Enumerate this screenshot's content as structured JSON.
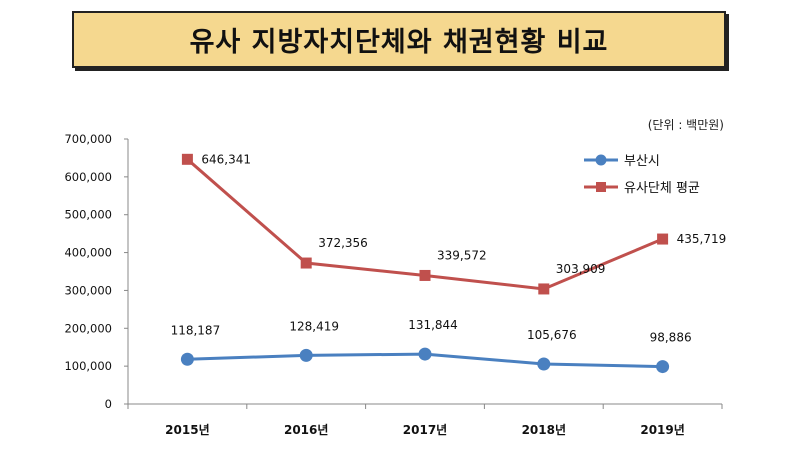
{
  "title": "유사 지방자치단체와 채권현황 비교",
  "unit": "(단위 : 백만원)",
  "chart_data": {
    "type": "line",
    "x": [
      "2015년",
      "2016년",
      "2017년",
      "2018년",
      "2019년"
    ],
    "ylim": [
      0,
      700000
    ],
    "yticks": [
      0,
      100000,
      200000,
      300000,
      400000,
      500000,
      600000,
      700000
    ],
    "ytick_labels": [
      "0",
      "100,000",
      "200,000",
      "300,000",
      "400,000",
      "500,000",
      "600,000",
      "700,000"
    ],
    "grid": false,
    "legend_position": "top-right",
    "series": [
      {
        "name": "부산시",
        "color": "#4a80c0",
        "marker": "circle",
        "values": [
          118187,
          128419,
          131844,
          105676,
          98886
        ],
        "labels": [
          "118,187",
          "128,419",
          "131,844",
          "105,676",
          "98,886"
        ]
      },
      {
        "name": "유사단체 평균",
        "color": "#c0504d",
        "marker": "square",
        "values": [
          646341,
          372356,
          339572,
          303909,
          435719
        ],
        "labels": [
          "646,341",
          "372,356",
          "339,572",
          "303,909",
          "435,719"
        ]
      }
    ]
  }
}
